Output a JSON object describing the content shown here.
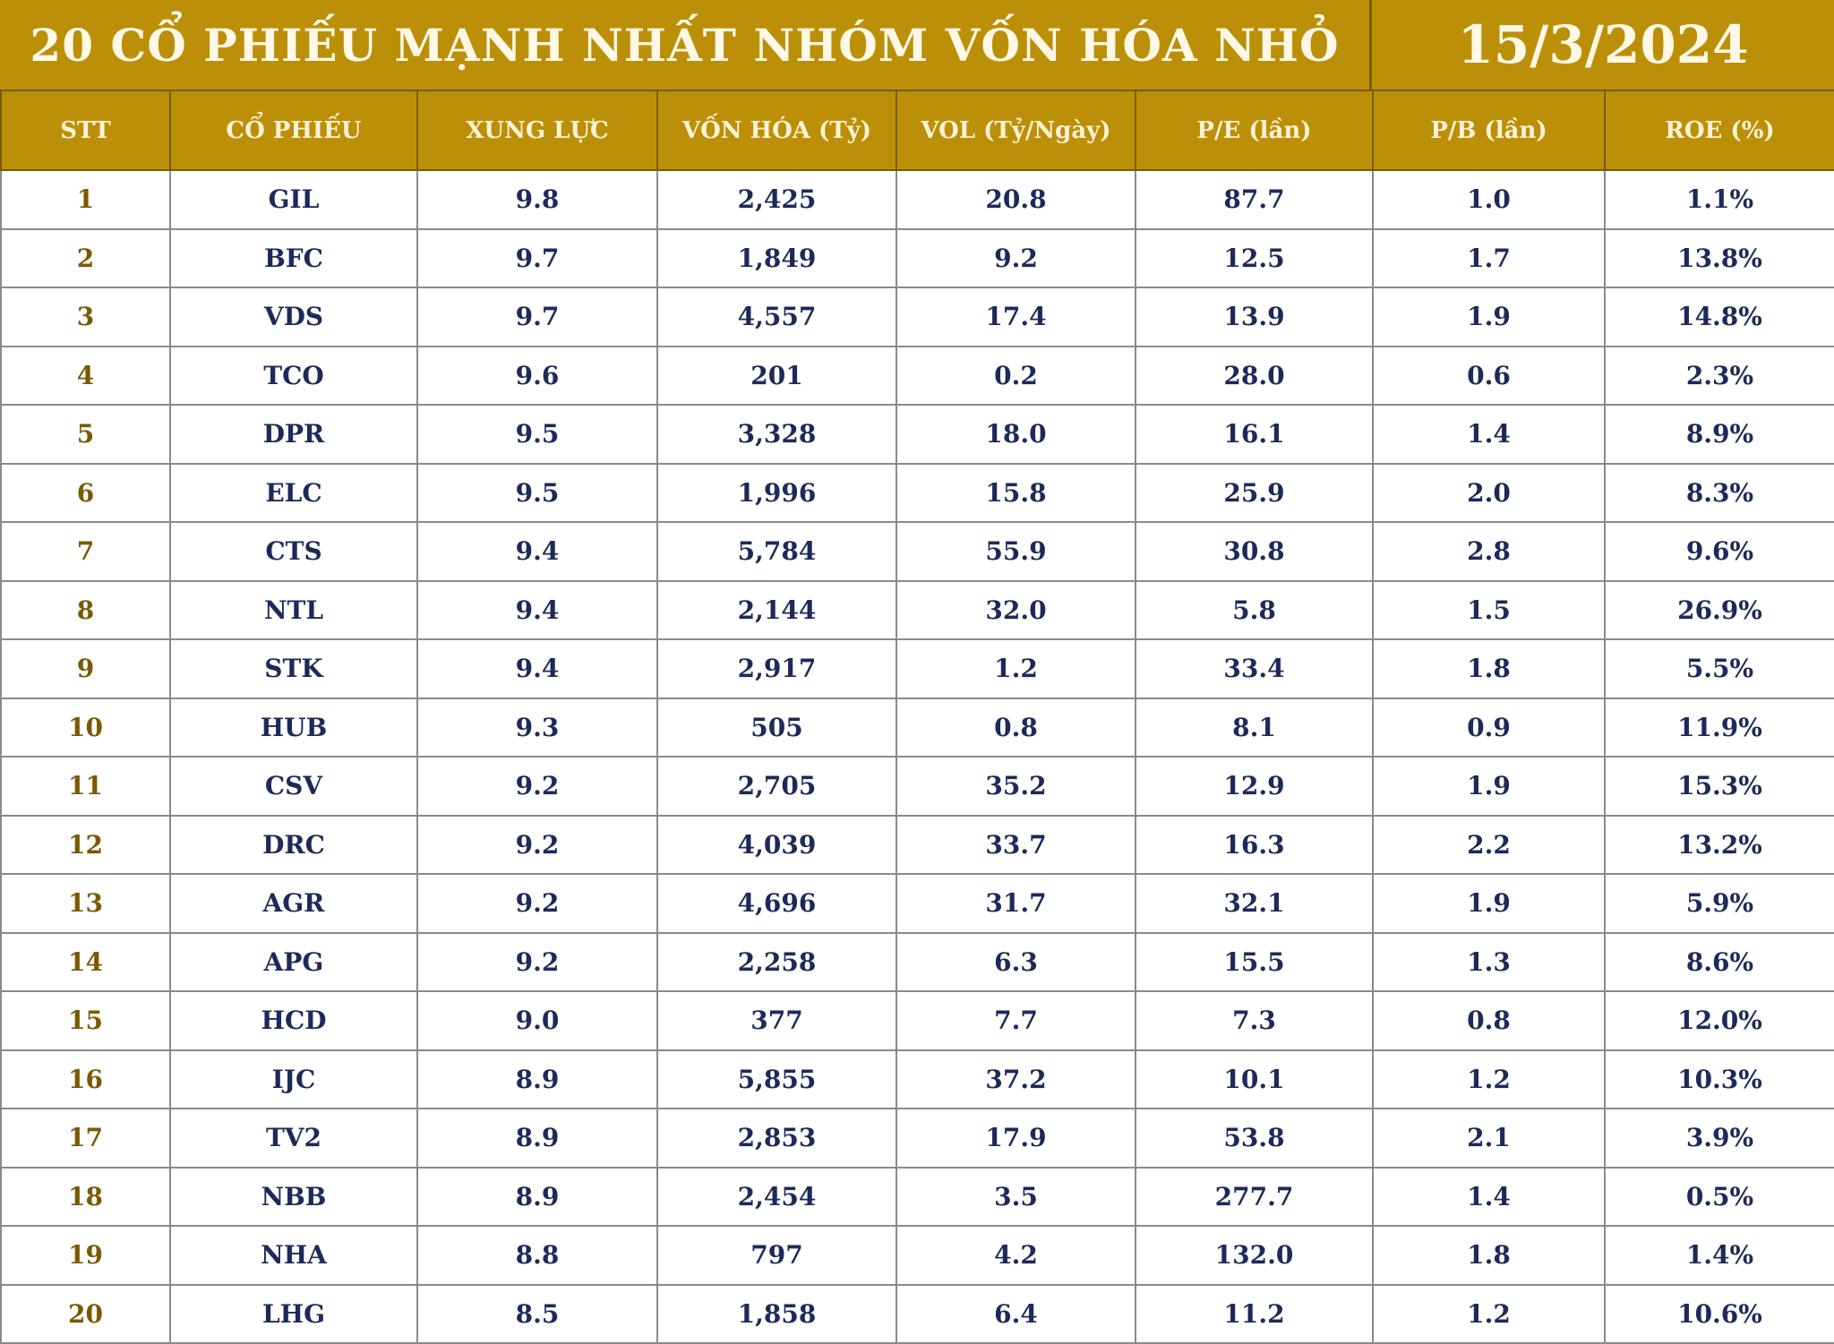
{
  "header": {
    "title": "20 CỔ PHIẾU MẠNH NHẤT NHÓM VỐN HÓA NHỎ",
    "date": "15/3/2024"
  },
  "table": {
    "columns": [
      "STT",
      "CỔ PHIẾU",
      "XUNG LỰC",
      "VỐN HÓA (Tỷ)",
      "VOL (Tỷ/Ngày)",
      "P/E (lần)",
      "P/B (lần)",
      "ROE (%)"
    ],
    "rows": [
      [
        "1",
        "GIL",
        "9.8",
        "2,425",
        "20.8",
        "87.7",
        "1.0",
        "1.1%"
      ],
      [
        "2",
        "BFC",
        "9.7",
        "1,849",
        "9.2",
        "12.5",
        "1.7",
        "13.8%"
      ],
      [
        "3",
        "VDS",
        "9.7",
        "4,557",
        "17.4",
        "13.9",
        "1.9",
        "14.8%"
      ],
      [
        "4",
        "TCO",
        "9.6",
        "201",
        "0.2",
        "28.0",
        "0.6",
        "2.3%"
      ],
      [
        "5",
        "DPR",
        "9.5",
        "3,328",
        "18.0",
        "16.1",
        "1.4",
        "8.9%"
      ],
      [
        "6",
        "ELC",
        "9.5",
        "1,996",
        "15.8",
        "25.9",
        "2.0",
        "8.3%"
      ],
      [
        "7",
        "CTS",
        "9.4",
        "5,784",
        "55.9",
        "30.8",
        "2.8",
        "9.6%"
      ],
      [
        "8",
        "NTL",
        "9.4",
        "2,144",
        "32.0",
        "5.8",
        "1.5",
        "26.9%"
      ],
      [
        "9",
        "STK",
        "9.4",
        "2,917",
        "1.2",
        "33.4",
        "1.8",
        "5.5%"
      ],
      [
        "10",
        "HUB",
        "9.3",
        "505",
        "0.8",
        "8.1",
        "0.9",
        "11.9%"
      ],
      [
        "11",
        "CSV",
        "9.2",
        "2,705",
        "35.2",
        "12.9",
        "1.9",
        "15.3%"
      ],
      [
        "12",
        "DRC",
        "9.2",
        "4,039",
        "33.7",
        "16.3",
        "2.2",
        "13.2%"
      ],
      [
        "13",
        "AGR",
        "9.2",
        "4,696",
        "31.7",
        "32.1",
        "1.9",
        "5.9%"
      ],
      [
        "14",
        "APG",
        "9.2",
        "2,258",
        "6.3",
        "15.5",
        "1.3",
        "8.6%"
      ],
      [
        "15",
        "HCD",
        "9.0",
        "377",
        "7.7",
        "7.3",
        "0.8",
        "12.0%"
      ],
      [
        "16",
        "IJC",
        "8.9",
        "5,855",
        "37.2",
        "10.1",
        "1.2",
        "10.3%"
      ],
      [
        "17",
        "TV2",
        "8.9",
        "2,853",
        "17.9",
        "53.8",
        "2.1",
        "3.9%"
      ],
      [
        "18",
        "NBB",
        "8.9",
        "2,454",
        "3.5",
        "277.7",
        "1.4",
        "0.5%"
      ],
      [
        "19",
        "NHA",
        "8.8",
        "797",
        "4.2",
        "132.0",
        "1.8",
        "1.4%"
      ],
      [
        "20",
        "LHG",
        "8.5",
        "1,858",
        "6.4",
        "11.2",
        "1.2",
        "10.6%"
      ]
    ]
  }
}
